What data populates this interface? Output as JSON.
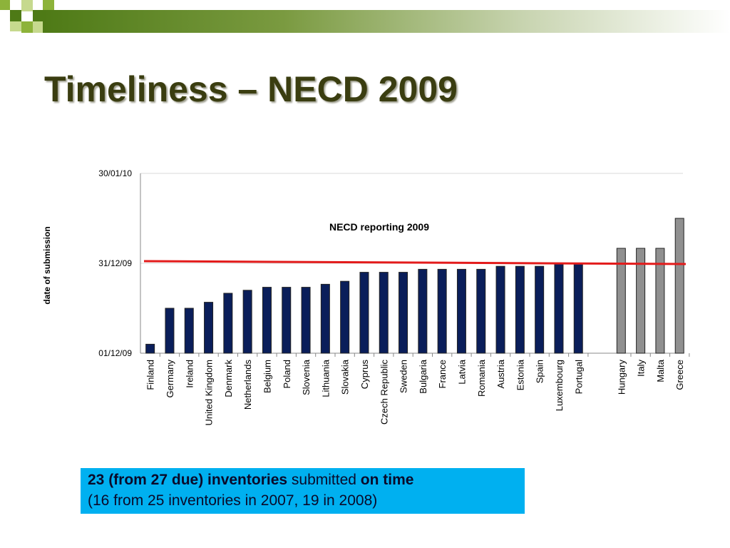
{
  "slide": {
    "title": "Timeliness – NECD 2009",
    "header_colors": [
      "#4e7a16",
      "#8db33a",
      "#c6d98e",
      "#ffffff"
    ]
  },
  "callout": {
    "line1_bold_a": "23 (from 27 due) inventories",
    "line1_normal": " submitted ",
    "line1_bold_b": "on time",
    "line2": "(16 from 25  inventories in 2007, 19 in 2008)",
    "background": "#00b0f0"
  },
  "chart_data": {
    "type": "bar",
    "title": "NECD reporting 2009",
    "ylabel": "date of submission",
    "xlabel": "",
    "y_axis_unit": "date",
    "yticks": [
      "01/12/09",
      "31/12/09",
      "30/01/10"
    ],
    "ylim": [
      "2009-12-01",
      "2010-01-30"
    ],
    "deadline": "2009-12-31",
    "deadline_color": "#e31b1b",
    "series_colors": {
      "on_time": "#0a1e5a",
      "late": "#909090"
    },
    "grid": "horizontal",
    "legend": "none",
    "groups": [
      {
        "status": "on_time",
        "categories": [
          "Finland",
          "Germany",
          "Ireland",
          "United Kingdom",
          "Denmark",
          "Netherlands",
          "Belgium",
          "Poland",
          "Slovenia",
          "Lithuania",
          "Slovakia",
          "Cyprus",
          "Czech Republic",
          "Sweden",
          "Bulgaria",
          "France",
          "Latvia",
          "Romania",
          "Austria",
          "Estonia",
          "Spain",
          "Luxembourg",
          "Portugal"
        ],
        "values": [
          "2009-12-04",
          "2009-12-16",
          "2009-12-16",
          "2009-12-18",
          "2009-12-21",
          "2009-12-22",
          "2009-12-23",
          "2009-12-23",
          "2009-12-23",
          "2009-12-24",
          "2009-12-25",
          "2009-12-28",
          "2009-12-28",
          "2009-12-28",
          "2009-12-29",
          "2009-12-29",
          "2009-12-29",
          "2009-12-29",
          "2009-12-30",
          "2009-12-30",
          "2009-12-30",
          "2009-12-31",
          "2009-12-31"
        ]
      },
      {
        "status": "late",
        "categories": [
          "Hungary",
          "Italy",
          "Malta",
          "Greece"
        ],
        "values": [
          "2010-01-05",
          "2010-01-05",
          "2010-01-05",
          "2010-01-15"
        ]
      }
    ]
  }
}
